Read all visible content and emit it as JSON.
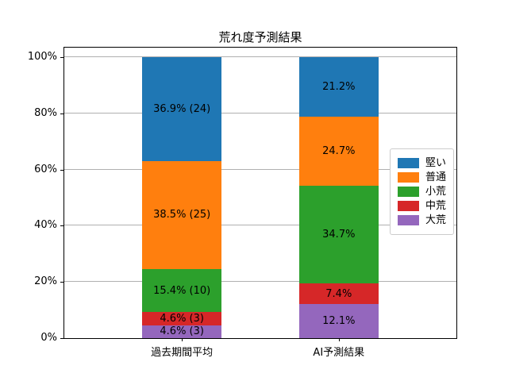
{
  "title": "荒れ度予測結果",
  "chart_data": {
    "type": "bar",
    "subtype": "stacked_percentage",
    "title": "荒れ度予測結果",
    "categories": [
      "過去期間平均",
      "AI予測結果"
    ],
    "series": [
      {
        "name": "大荒",
        "color": "#9467bd",
        "values": [
          4.6,
          12.1
        ],
        "bar_labels": [
          "4.6% (3)",
          "12.1%"
        ]
      },
      {
        "name": "中荒",
        "color": "#d62728",
        "values": [
          4.6,
          7.4
        ],
        "bar_labels": [
          "4.6% (3)",
          "7.4%"
        ]
      },
      {
        "name": "小荒",
        "color": "#2ca02c",
        "values": [
          15.4,
          34.7
        ],
        "bar_labels": [
          "15.4% (10)",
          "34.7%"
        ]
      },
      {
        "name": "普通",
        "color": "#ff7f0e",
        "values": [
          38.5,
          24.7
        ],
        "bar_labels": [
          "38.5% (25)",
          "24.7%"
        ]
      },
      {
        "name": "堅い",
        "color": "#1f77b4",
        "values": [
          36.9,
          21.2
        ],
        "bar_labels": [
          "36.9% (24)",
          "21.2%"
        ]
      }
    ],
    "stack_order": "bottom_to_top",
    "y_axis": {
      "tick_labels": [
        "0%",
        "20%",
        "40%",
        "60%",
        "80%",
        "100%"
      ],
      "tick_values": [
        0,
        20,
        40,
        60,
        80,
        100
      ],
      "ylim": [
        0,
        100
      ]
    },
    "grid": "horizontal",
    "grid_color": "#b0b0b0",
    "spine_color": "#000000",
    "legend": {
      "position": "center-right",
      "items": [
        {
          "label": "堅い",
          "color": "#1f77b4"
        },
        {
          "label": "普通",
          "color": "#ff7f0e"
        },
        {
          "label": "小荒",
          "color": "#2ca02c"
        },
        {
          "label": "中荒",
          "color": "#d62728"
        },
        {
          "label": "大荒",
          "color": "#9467bd"
        }
      ]
    }
  }
}
